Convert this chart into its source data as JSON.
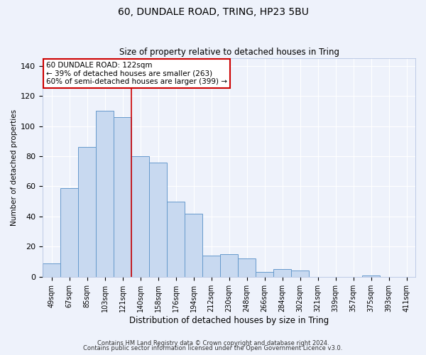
{
  "title": "60, DUNDALE ROAD, TRING, HP23 5BU",
  "subtitle": "Size of property relative to detached houses in Tring",
  "xlabel": "Distribution of detached houses by size in Tring",
  "ylabel": "Number of detached properties",
  "bar_labels": [
    "49sqm",
    "67sqm",
    "85sqm",
    "103sqm",
    "121sqm",
    "140sqm",
    "158sqm",
    "176sqm",
    "194sqm",
    "212sqm",
    "230sqm",
    "248sqm",
    "266sqm",
    "284sqm",
    "302sqm",
    "321sqm",
    "339sqm",
    "357sqm",
    "375sqm",
    "393sqm",
    "411sqm"
  ],
  "bar_values": [
    9,
    59,
    86,
    110,
    106,
    80,
    76,
    50,
    42,
    14,
    15,
    12,
    3,
    5,
    4,
    0,
    0,
    0,
    1,
    0,
    0
  ],
  "bar_color": "#c8d9f0",
  "bar_edge_color": "#6699cc",
  "ylim": [
    0,
    145
  ],
  "yticks": [
    0,
    20,
    40,
    60,
    80,
    100,
    120,
    140
  ],
  "annotation_title": "60 DUNDALE ROAD: 122sqm",
  "annotation_line1": "← 39% of detached houses are smaller (263)",
  "annotation_line2": "60% of semi-detached houses are larger (399) →",
  "annotation_box_color": "#ffffff",
  "annotation_box_edge": "#cc0000",
  "annotation_text_color": "#000000",
  "vline_index": 4,
  "vline_color": "#cc0000",
  "background_color": "#eef2fb",
  "grid_color": "#ffffff",
  "footnote1": "Contains HM Land Registry data © Crown copyright and database right 2024.",
  "footnote2": "Contains public sector information licensed under the Open Government Licence v3.0."
}
